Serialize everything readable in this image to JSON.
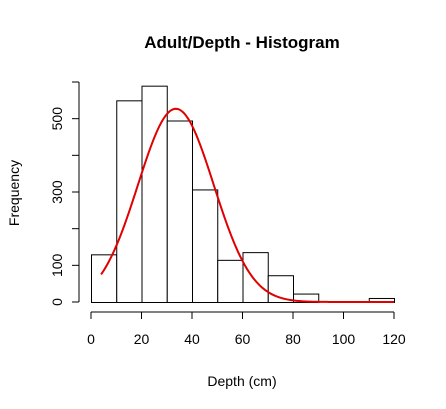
{
  "chart_data": {
    "type": "histogram",
    "title": "Adult/Depth - Histogram",
    "xlabel": "Depth (cm)",
    "ylabel": "Frequency",
    "xlim": [
      0,
      120
    ],
    "ylim": [
      0,
      600
    ],
    "x_ticks": [
      0,
      20,
      40,
      60,
      80,
      100,
      120
    ],
    "y_ticks": [
      0,
      100,
      300,
      500
    ],
    "bins": [
      {
        "start": 0,
        "end": 10,
        "value": 130
      },
      {
        "start": 10,
        "end": 20,
        "value": 550
      },
      {
        "start": 20,
        "end": 30,
        "value": 590
      },
      {
        "start": 30,
        "end": 40,
        "value": 495
      },
      {
        "start": 40,
        "end": 50,
        "value": 307
      },
      {
        "start": 50,
        "end": 60,
        "value": 115
      },
      {
        "start": 60,
        "end": 70,
        "value": 136
      },
      {
        "start": 70,
        "end": 80,
        "value": 73
      },
      {
        "start": 80,
        "end": 90,
        "value": 23
      },
      {
        "start": 90,
        "end": 100,
        "value": 0
      },
      {
        "start": 100,
        "end": 110,
        "value": 0
      },
      {
        "start": 110,
        "end": 120,
        "value": 11
      }
    ],
    "density_curve": {
      "type": "normal",
      "mean": 33.6,
      "sd": 15,
      "peak": 527,
      "x_range": [
        4,
        120
      ],
      "color": "#e00000"
    },
    "grid": false
  }
}
